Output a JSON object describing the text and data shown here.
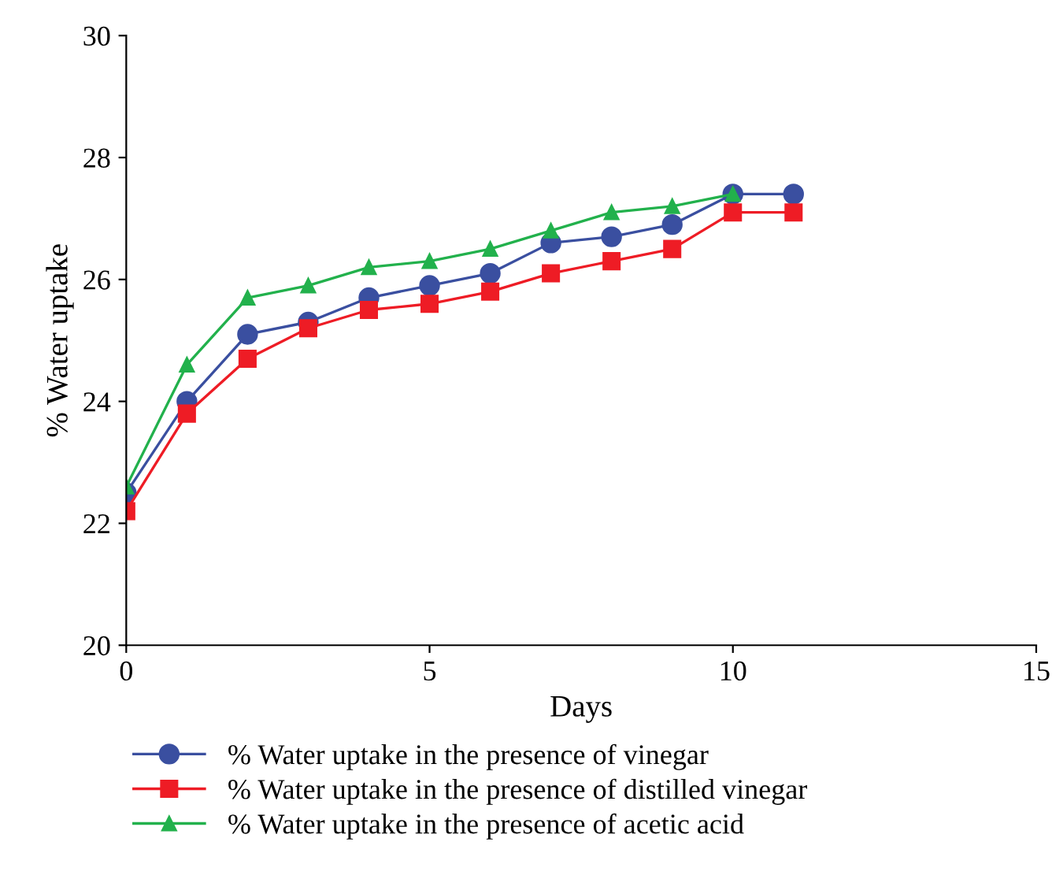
{
  "chart_data": {
    "type": "line",
    "xlabel": "Days",
    "ylabel": "% Water uptake",
    "x": [
      0,
      1,
      2,
      3,
      4,
      5,
      6,
      7,
      8,
      9,
      10,
      11
    ],
    "xlim": [
      0,
      15
    ],
    "xticks": [
      0,
      5,
      10,
      15
    ],
    "ylim": [
      20,
      30
    ],
    "yticks": [
      20,
      22,
      24,
      26,
      28,
      30
    ],
    "grid": false,
    "legend": "bottom",
    "series": [
      {
        "name": "% Water uptake in the presence of vinegar",
        "color": "#3a4fa0",
        "marker": "circle",
        "values": [
          22.5,
          24.0,
          25.1,
          25.3,
          25.7,
          25.9,
          26.1,
          26.6,
          26.7,
          26.9,
          27.4,
          27.4
        ]
      },
      {
        "name": "% Water uptake in the presence of distilled vinegar",
        "color": "#ee1c25",
        "marker": "square",
        "values": [
          22.2,
          23.8,
          24.7,
          25.2,
          25.5,
          25.6,
          25.8,
          26.1,
          26.3,
          26.5,
          27.1,
          27.1
        ]
      },
      {
        "name": "% Water uptake in the presence of acetic acid",
        "color": "#22b14c",
        "marker": "triangle",
        "values": [
          22.6,
          24.6,
          25.7,
          25.9,
          26.2,
          26.3,
          26.5,
          26.8,
          27.1,
          27.2,
          27.4,
          null
        ]
      }
    ]
  }
}
